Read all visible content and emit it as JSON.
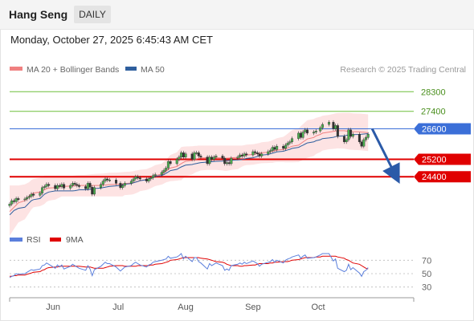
{
  "header": {
    "title": "Hang Seng",
    "timeframe": "DAILY"
  },
  "timestamp": "Monday, October 27, 2025 6:45:43 AM CET",
  "legend": {
    "ma20_label": "MA 20 + Bollinger Bands",
    "ma50_label": "MA 50",
    "ma20_color": "#f08080",
    "ma50_color": "#2f5f9e"
  },
  "attribution": "Research © 2025 Trading Central",
  "rsi_legend": {
    "rsi_label": "RSI",
    "ma9_label": "9MA",
    "rsi_color": "#5b7fdc",
    "ma9_color": "#e00000"
  },
  "chart_data": [
    {
      "type": "candlestick",
      "x_range": [
        "2025-05-12",
        "2025-11-14"
      ],
      "y_range": [
        22200,
        28900
      ],
      "dates": [
        "2025-05-12",
        "2025-05-13",
        "2025-05-14",
        "2025-05-15",
        "2025-05-16",
        "2025-05-19",
        "2025-05-20",
        "2025-05-21",
        "2025-05-22",
        "2025-05-23",
        "2025-05-26",
        "2025-05-27",
        "2025-05-28",
        "2025-05-29",
        "2025-05-30",
        "2025-06-02",
        "2025-06-03",
        "2025-06-04",
        "2025-06-05",
        "2025-06-06",
        "2025-06-09",
        "2025-06-10",
        "2025-06-11",
        "2025-06-12",
        "2025-06-13",
        "2025-06-16",
        "2025-06-17",
        "2025-06-18",
        "2025-06-19",
        "2025-06-20",
        "2025-06-23",
        "2025-06-24",
        "2025-06-25",
        "2025-06-26",
        "2025-06-27",
        "2025-06-30",
        "2025-07-02",
        "2025-07-03",
        "2025-07-04",
        "2025-07-07",
        "2025-07-08",
        "2025-07-09",
        "2025-07-10",
        "2025-07-11",
        "2025-07-14",
        "2025-07-15",
        "2025-07-16",
        "2025-07-17",
        "2025-07-18",
        "2025-07-21",
        "2025-07-22",
        "2025-07-23",
        "2025-07-24",
        "2025-07-25",
        "2025-07-28",
        "2025-07-29",
        "2025-07-30",
        "2025-07-31",
        "2025-08-01",
        "2025-08-04",
        "2025-08-05",
        "2025-08-06",
        "2025-08-07",
        "2025-08-08",
        "2025-08-11",
        "2025-08-12",
        "2025-08-13",
        "2025-08-14",
        "2025-08-15",
        "2025-08-18",
        "2025-08-19",
        "2025-08-20",
        "2025-08-21",
        "2025-08-22",
        "2025-08-25",
        "2025-08-26",
        "2025-08-27",
        "2025-08-28",
        "2025-08-29",
        "2025-09-01",
        "2025-09-02",
        "2025-09-03",
        "2025-09-04",
        "2025-09-05",
        "2025-09-08",
        "2025-09-09",
        "2025-09-10",
        "2025-09-11",
        "2025-09-12",
        "2025-09-15",
        "2025-09-16",
        "2025-09-17",
        "2025-09-18",
        "2025-09-19",
        "2025-09-22",
        "2025-09-23",
        "2025-09-24",
        "2025-09-25",
        "2025-09-26",
        "2025-09-29",
        "2025-09-30",
        "2025-10-02",
        "2025-10-03",
        "2025-10-06",
        "2025-10-08",
        "2025-10-09",
        "2025-10-10",
        "2025-10-13",
        "2025-10-14",
        "2025-10-15",
        "2025-10-16",
        "2025-10-17",
        "2025-10-20",
        "2025-10-21",
        "2025-10-22",
        "2025-10-23",
        "2025-10-24"
      ],
      "close": [
        23150,
        23300,
        23260,
        23400,
        23350,
        23380,
        23450,
        23500,
        23600,
        23550,
        23650,
        23900,
        23950,
        24050,
        24000,
        23850,
        24000,
        23950,
        24050,
        23880,
        24000,
        24100,
        24050,
        24000,
        23950,
        23850,
        24100,
        23920,
        23600,
        23900,
        24050,
        24200,
        24300,
        24250,
        24250,
        24100,
        23900,
        24000,
        24100,
        24200,
        24300,
        24400,
        24350,
        24300,
        24200,
        24300,
        24350,
        24450,
        24500,
        24600,
        24700,
        24800,
        25100,
        25000,
        25200,
        25300,
        25500,
        25300,
        25450,
        25200,
        25500,
        25500,
        25350,
        25300,
        25000,
        25300,
        25200,
        25300,
        25350,
        25250,
        25000,
        25050,
        25000,
        25250,
        25300,
        25400,
        25350,
        25450,
        25400,
        25550,
        25500,
        25450,
        25350,
        25450,
        25550,
        25600,
        25750,
        25650,
        25800,
        25700,
        25850,
        25950,
        26000,
        26150,
        26400,
        26200,
        26450,
        26550,
        26400,
        26450,
        26500,
        26650,
        26800,
        26900,
        26600,
        26750,
        26250,
        26000,
        26100,
        26550,
        26250,
        26350,
        26000,
        25800,
        26100,
        26200,
        26350
      ],
      "ohlc_note": "",
      "lines": [
        {
          "label": "28300",
          "value": 28300,
          "color": "#6fbf3c"
        },
        {
          "label": "27400",
          "value": 27400,
          "color": "#6fbf3c"
        },
        {
          "label": "26600",
          "value": 26600,
          "color": "#3b6fd8"
        },
        {
          "label": "25200",
          "value": 25200,
          "color": "#e00000"
        },
        {
          "label": "24400",
          "value": 24400,
          "color": "#e00000"
        }
      ],
      "x_tick_labels": [
        "Jun",
        "Jul",
        "Aug",
        "Sep",
        "Oct"
      ],
      "x_tick_dates": [
        "2025-06-01",
        "2025-07-01",
        "2025-08-01",
        "2025-09-01",
        "2025-10-01"
      ],
      "ma50": [
        22650,
        22750,
        22850,
        22900,
        22950,
        23000,
        23100,
        23200,
        23300,
        23350,
        23400,
        23500,
        23600,
        23650,
        23700,
        23750,
        23750,
        23750,
        23750,
        23750,
        23750,
        23750,
        23760,
        23780,
        23800,
        23800,
        23810,
        23820,
        23840,
        23860,
        23880,
        23900,
        23920,
        23940,
        23960,
        23980,
        24000,
        24030,
        24060,
        24090,
        24120,
        24150,
        24180,
        24220,
        24260,
        24300,
        24340,
        24380,
        24420,
        24460,
        24500,
        24560,
        24620,
        24680,
        24740,
        24800,
        24850,
        24890,
        24930,
        24960,
        24990,
        25010,
        25030,
        25050,
        25070,
        25080,
        25090,
        25100,
        25110,
        25120,
        25130,
        25140,
        25150,
        25160,
        25170,
        25180,
        25190,
        25210,
        25240,
        25270,
        25300,
        25330,
        25360,
        25390,
        25420,
        25450,
        25480,
        25510,
        25540,
        25570,
        25600,
        25630,
        25660,
        25700,
        25750,
        25800,
        25850,
        25900,
        25950,
        26000,
        26050,
        26100,
        26150,
        26180,
        26210,
        26240,
        26260,
        26280,
        26300,
        26310,
        26320,
        26330,
        26340,
        26350,
        26360,
        26370,
        26380
      ],
      "ma20": [
        22800,
        22900,
        23000,
        23100,
        23200,
        23300,
        23400,
        23500,
        23600,
        23650,
        23700,
        23750,
        23800,
        23850,
        23880,
        23900,
        23920,
        23940,
        23950,
        23960,
        23970,
        23980,
        23990,
        24000,
        24000,
        24000,
        24000,
        24000,
        24000,
        24000,
        24000,
        24010,
        24020,
        24030,
        24040,
        24050,
        24060,
        24070,
        24090,
        24110,
        24130,
        24160,
        24190,
        24230,
        24270,
        24310,
        24350,
        24400,
        24450,
        24520,
        24590,
        24660,
        24730,
        24800,
        24870,
        24940,
        25000,
        25060,
        25110,
        25150,
        25190,
        25220,
        25240,
        25260,
        25270,
        25270,
        25270,
        25270,
        25270,
        25260,
        25250,
        25250,
        25260,
        25270,
        25290,
        25320,
        25350,
        25380,
        25400,
        25420,
        25440,
        25460,
        25480,
        25500,
        25520,
        25540,
        25560,
        25590,
        25620,
        25650,
        25680,
        25720,
        25760,
        25800,
        25850,
        25920,
        25990,
        26060,
        26130,
        26200,
        26270,
        26340,
        26400,
        26450,
        26480,
        26500,
        26510,
        26510,
        26500,
        26490,
        26480,
        26470,
        26460,
        26450,
        26440,
        26430,
        26420
      ],
      "bb_upper": [
        24000,
        24000,
        24000,
        24000,
        24000,
        24050,
        24100,
        24150,
        24250,
        24300,
        24350,
        24400,
        24450,
        24450,
        24450,
        24450,
        24450,
        24450,
        24450,
        24450,
        24450,
        24450,
        24460,
        24470,
        24480,
        24490,
        24500,
        24510,
        24520,
        24530,
        24540,
        24550,
        24560,
        24570,
        24580,
        24590,
        24600,
        24610,
        24620,
        24640,
        24660,
        24680,
        24700,
        24720,
        24750,
        24790,
        24830,
        24880,
        24930,
        25000,
        25090,
        25180,
        25290,
        25400,
        25520,
        25640,
        25760,
        25780,
        25790,
        25800,
        25810,
        25820,
        25830,
        25830,
        25830,
        25830,
        25830,
        25830,
        25830,
        25830,
        25830,
        25830,
        25830,
        25830,
        25830,
        25830,
        25830,
        25850,
        25870,
        25890,
        25910,
        25930,
        25950,
        25980,
        26010,
        26040,
        26080,
        26120,
        26170,
        26230,
        26300,
        26380,
        26460,
        26540,
        26630,
        26720,
        26810,
        26900,
        26990,
        27050,
        27100,
        27150,
        27200,
        27240,
        27280,
        27310,
        27320,
        27330,
        27330,
        27330,
        27320,
        27310,
        27300,
        27290,
        27280,
        27270,
        27260
      ],
      "bb_lower": [
        21700,
        21850,
        22000,
        22150,
        22300,
        22450,
        22600,
        22750,
        22900,
        23000,
        23050,
        23100,
        23150,
        23250,
        23300,
        23350,
        23400,
        23450,
        23500,
        23500,
        23500,
        23500,
        23500,
        23500,
        23500,
        23500,
        23500,
        23500,
        23500,
        23500,
        23500,
        23500,
        23500,
        23500,
        23500,
        23500,
        23500,
        23500,
        23560,
        23580,
        23600,
        23640,
        23680,
        23740,
        23790,
        23830,
        23870,
        23920,
        23970,
        24040,
        24090,
        24140,
        24170,
        24200,
        24220,
        24240,
        24240,
        24340,
        24430,
        24500,
        24570,
        24620,
        24650,
        24690,
        24710,
        24710,
        24710,
        24710,
        24710,
        24690,
        24670,
        24670,
        24690,
        24710,
        24750,
        24810,
        24870,
        24910,
        24930,
        24950,
        24970,
        24990,
        25010,
        25020,
        25030,
        25040,
        25040,
        25060,
        25070,
        25070,
        25060,
        25060,
        25060,
        25060,
        25070,
        25120,
        25170,
        25220,
        25270,
        25350,
        25440,
        25530,
        25600,
        25660,
        25680,
        25690,
        25700,
        25690,
        25670,
        25650,
        25640,
        25630,
        25620,
        25610,
        25600,
        25590,
        25580
      ],
      "arrow": {
        "from_value": 26600,
        "to_value": 24400,
        "direction": "down"
      }
    },
    {
      "type": "line",
      "title": "",
      "y_range": [
        20,
        80
      ],
      "y_tick_labels": [
        "70",
        "50",
        "30"
      ],
      "y_ticks": [
        70,
        50,
        30
      ],
      "series": [
        {
          "name": "RSI",
          "values": [
            44,
            46,
            47,
            50,
            49,
            50,
            52,
            54,
            56,
            55,
            57,
            62,
            63,
            66,
            64,
            58,
            63,
            60,
            63,
            57,
            61,
            64,
            62,
            60,
            58,
            55,
            62,
            57,
            47,
            56,
            61,
            64,
            67,
            65,
            65,
            60,
            54,
            57,
            60,
            62,
            65,
            67,
            65,
            63,
            60,
            63,
            64,
            67,
            68,
            70,
            71,
            72,
            76,
            73,
            75,
            77,
            80,
            72,
            76,
            68,
            74,
            74,
            68,
            66,
            57,
            65,
            62,
            64,
            66,
            62,
            55,
            57,
            55,
            62,
            64,
            66,
            64,
            67,
            65,
            69,
            67,
            65,
            61,
            64,
            67,
            68,
            71,
            67,
            70,
            66,
            70,
            72,
            73,
            75,
            78,
            73,
            76,
            78,
            73,
            74,
            75,
            78,
            80,
            80,
            69,
            72,
            58,
            53,
            55,
            64,
            56,
            59,
            51,
            46,
            53,
            55,
            59
          ]
        },
        {
          "name": "9MA",
          "values": [
            46,
            46,
            47,
            47,
            48,
            48,
            49,
            50,
            51,
            52,
            53,
            55,
            56,
            58,
            59,
            60,
            60,
            61,
            61,
            61,
            61,
            61,
            61,
            61,
            61,
            60,
            60,
            60,
            59,
            58,
            58,
            58,
            59,
            60,
            61,
            62,
            62,
            62,
            61,
            61,
            61,
            61,
            62,
            62,
            62,
            62,
            63,
            63,
            64,
            65,
            66,
            67,
            68,
            70,
            71,
            72,
            73,
            74,
            74,
            74,
            74,
            74,
            74,
            73,
            72,
            71,
            70,
            69,
            68,
            67,
            66,
            64,
            63,
            62,
            62,
            61,
            61,
            62,
            62,
            63,
            63,
            64,
            65,
            65,
            65,
            66,
            66,
            67,
            67,
            68,
            68,
            68,
            69,
            70,
            71,
            72,
            73,
            74,
            74,
            74,
            75,
            75,
            76,
            76,
            76,
            76,
            75,
            73,
            71,
            70,
            68,
            66,
            64,
            62,
            60,
            58,
            57
          ]
        }
      ]
    }
  ]
}
